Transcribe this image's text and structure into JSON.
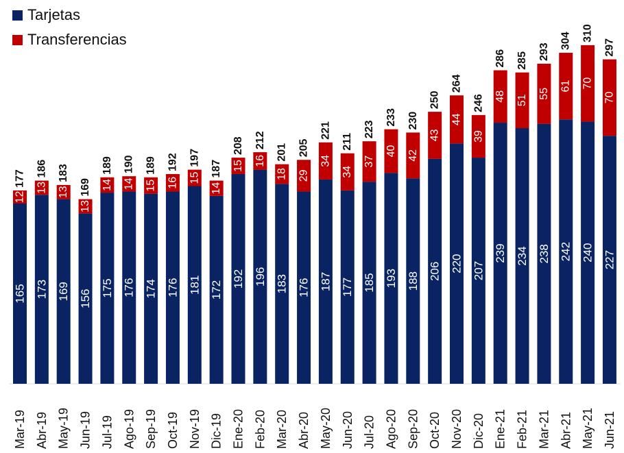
{
  "chart_data": {
    "type": "bar",
    "stacked": true,
    "categories": [
      "Mar-19",
      "Abr-19",
      "May-19",
      "Jun-19",
      "Jul-19",
      "Ago-19",
      "Sep-19",
      "Oct-19",
      "Nov-19",
      "Dic-19",
      "Ene-20",
      "Feb-20",
      "Mar-20",
      "Abr-20",
      "May-20",
      "Jun-20",
      "Jul-20",
      "Ago-20",
      "Sep-20",
      "Oct-20",
      "Nov-20",
      "Dic-20",
      "Ene-21",
      "Feb-21",
      "Mar-21",
      "Abr-21",
      "May-21",
      "Jun-21"
    ],
    "series": [
      {
        "name": "Tarjetas",
        "color": "#0a2463",
        "values": [
          165,
          173,
          169,
          156,
          175,
          176,
          174,
          176,
          181,
          172,
          192,
          196,
          183,
          176,
          187,
          177,
          185,
          193,
          188,
          206,
          220,
          207,
          239,
          234,
          238,
          242,
          240,
          227
        ]
      },
      {
        "name": "Transferencias",
        "color": "#c00000",
        "values": [
          12,
          13,
          13,
          13,
          14,
          14,
          15,
          16,
          15,
          14,
          15,
          16,
          18,
          29,
          34,
          34,
          37,
          40,
          42,
          43,
          44,
          39,
          48,
          51,
          55,
          61,
          70,
          70
        ]
      }
    ],
    "totals": [
      177,
      186,
      183,
      169,
      189,
      190,
      189,
      192,
      197,
      187,
      208,
      212,
      201,
      205,
      221,
      211,
      223,
      233,
      230,
      250,
      264,
      246,
      286,
      285,
      293,
      304,
      310,
      297
    ],
    "ylim": [
      0,
      330
    ],
    "grid": false,
    "legend": "top-left"
  }
}
